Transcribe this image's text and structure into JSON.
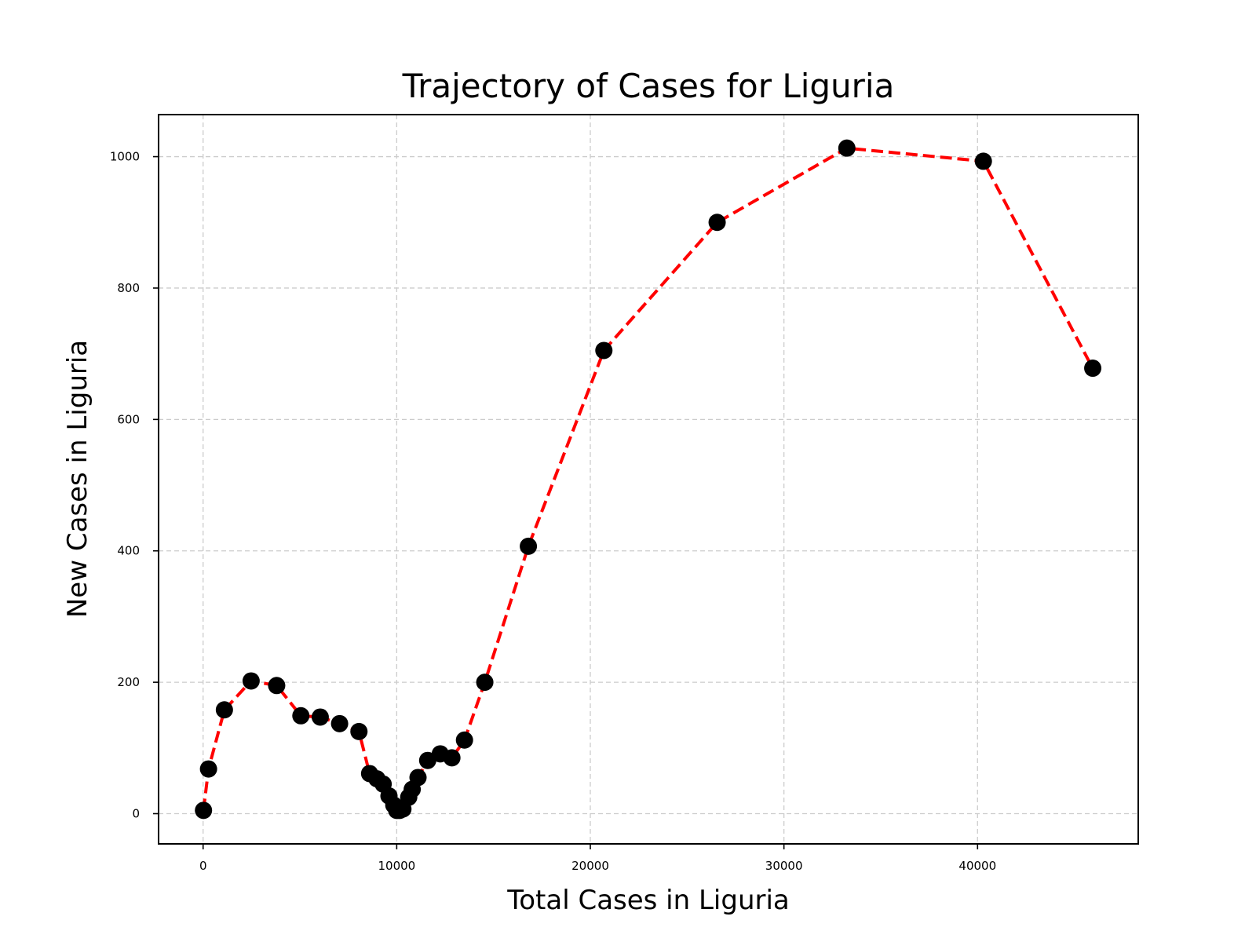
{
  "chart_data": {
    "type": "line",
    "title": "Trajectory of Cases for Liguria",
    "xlabel": "Total Cases in Liguria",
    "ylabel": "New Cases in Liguria",
    "xlim": [
      -2300,
      48300
    ],
    "ylim": [
      -46,
      1064
    ],
    "xticks": [
      0,
      10000,
      20000,
      30000,
      40000
    ],
    "yticks": [
      0,
      200,
      400,
      600,
      800,
      1000
    ],
    "grid": true,
    "line_style": "dashed",
    "line_color": "#ff0000",
    "marker_color": "#000000",
    "points": [
      {
        "x": 20,
        "y": 5
      },
      {
        "x": 280,
        "y": 68
      },
      {
        "x": 1100,
        "y": 158
      },
      {
        "x": 2480,
        "y": 202
      },
      {
        "x": 3800,
        "y": 195
      },
      {
        "x": 5050,
        "y": 149
      },
      {
        "x": 6050,
        "y": 147
      },
      {
        "x": 7050,
        "y": 137
      },
      {
        "x": 8050,
        "y": 125
      },
      {
        "x": 8600,
        "y": 61
      },
      {
        "x": 8980,
        "y": 53
      },
      {
        "x": 9300,
        "y": 45
      },
      {
        "x": 9600,
        "y": 27
      },
      {
        "x": 9850,
        "y": 13
      },
      {
        "x": 10000,
        "y": 5
      },
      {
        "x": 10150,
        "y": 5
      },
      {
        "x": 10320,
        "y": 7
      },
      {
        "x": 10620,
        "y": 25
      },
      {
        "x": 10800,
        "y": 37
      },
      {
        "x": 11100,
        "y": 55
      },
      {
        "x": 11600,
        "y": 81
      },
      {
        "x": 12250,
        "y": 91
      },
      {
        "x": 12850,
        "y": 85
      },
      {
        "x": 13500,
        "y": 112
      },
      {
        "x": 14550,
        "y": 200
      },
      {
        "x": 16800,
        "y": 407
      },
      {
        "x": 20700,
        "y": 705
      },
      {
        "x": 26550,
        "y": 900
      },
      {
        "x": 33250,
        "y": 1013
      },
      {
        "x": 40300,
        "y": 993
      },
      {
        "x": 45950,
        "y": 678
      }
    ]
  }
}
